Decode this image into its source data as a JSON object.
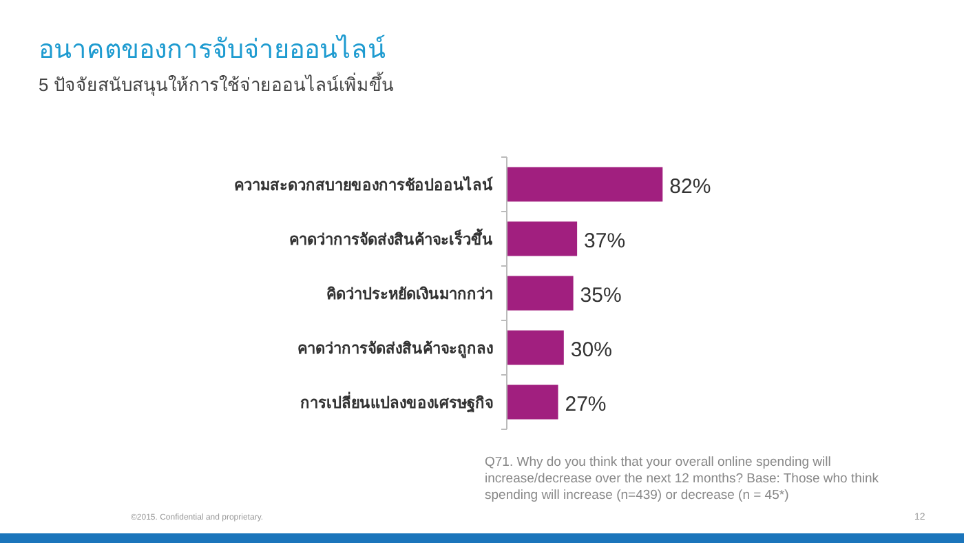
{
  "chart_data": {
    "type": "bar",
    "orientation": "horizontal",
    "title": "อนาคตของการจับจ่ายออนไลน์",
    "subtitle": "5 ปัจจัยสนับสนุนให้การใช้จ่ายออนไลน์เพิ่มขึ้น",
    "categories": [
      "ความสะดวกสบายของการช้อปออนไลน์",
      "คาดว่าการจัดส่งสินค้าจะเร็วขึ้น",
      "คิดว่าประหยัดเงินมากกว่า",
      "คาดว่าการจัดส่งสินค้าจะถูกลง",
      "การเปลี่ยนแปลงของเศรษฐกิจ"
    ],
    "values": [
      82,
      37,
      35,
      30,
      27
    ],
    "color": "#a11f7f",
    "value_labels": [
      "82%",
      "37%",
      "35%",
      "30%",
      "27%"
    ],
    "annotations": [
      "Q71. Why do you think that your overall online spending will increase/decrease over the next 12 months? Base: Those who think spending will increase (n=439) or decrease (n = 45*)",
      "©2015. Confidential and proprietary.",
      "12"
    ]
  }
}
